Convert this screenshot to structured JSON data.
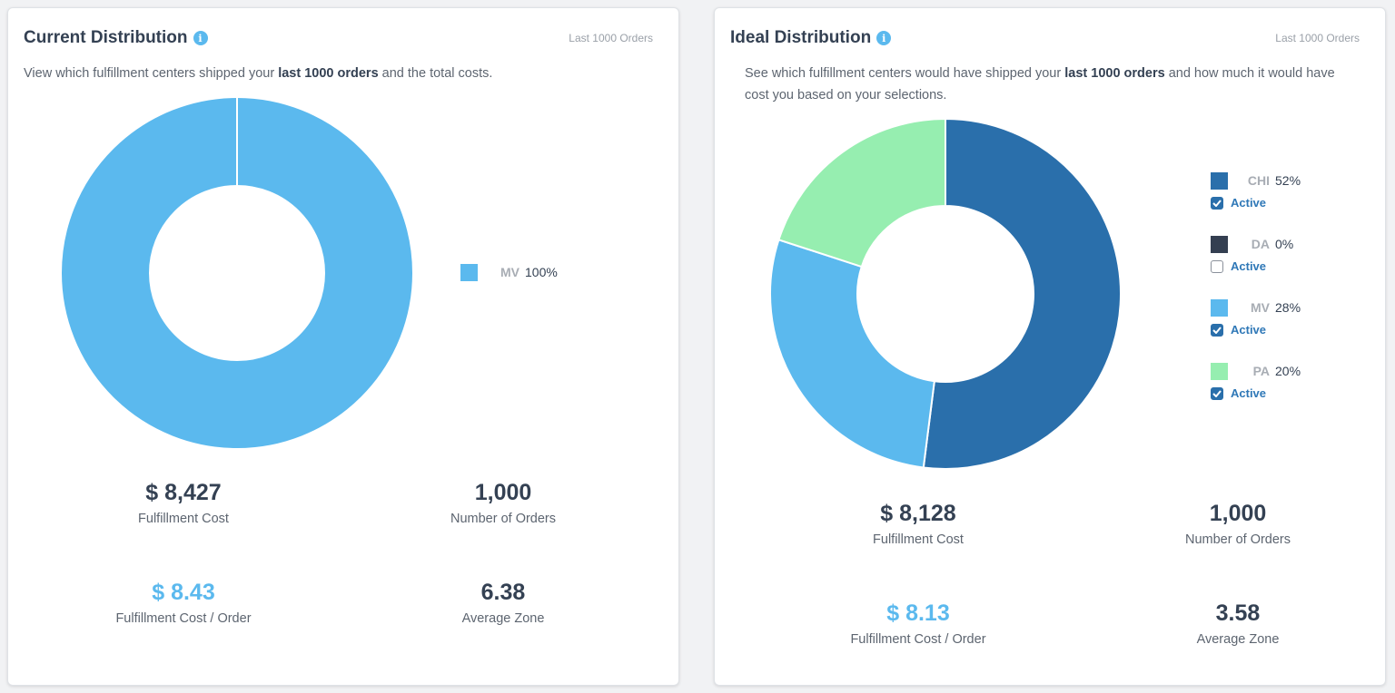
{
  "cards": [
    {
      "title": "Current Distribution",
      "badge": "Last 1000 Orders",
      "desc_pre": "View which fulfillment centers shipped your ",
      "desc_bold": "last 1000 orders",
      "desc_post": " and the total costs.",
      "stats": {
        "cost": "$ 8,427",
        "cost_label": "Fulfillment Cost",
        "orders": "1,000",
        "orders_label": "Number of Orders",
        "cpo": "$ 8.43",
        "cpo_label": "Fulfillment Cost / Order",
        "zone": "6.38",
        "zone_label": "Average Zone"
      }
    },
    {
      "title": "Ideal Distribution",
      "badge": "Last 1000 Orders",
      "desc_pre": "See which fulfillment centers would have shipped your ",
      "desc_bold": "last 1000 orders",
      "desc_post": " and how much it would have cost you based on your selections.",
      "stats": {
        "cost": "$ 8,128",
        "cost_label": "Fulfillment Cost",
        "orders": "1,000",
        "orders_label": "Number of Orders",
        "cpo": "$ 8.13",
        "cpo_label": "Fulfillment Cost / Order",
        "zone": "3.58",
        "zone_label": "Average Zone"
      },
      "active_label": "Active"
    }
  ],
  "chart_data": [
    {
      "type": "pie",
      "donut": true,
      "categories": [
        "MV"
      ],
      "values": [
        100
      ],
      "labels": [
        "100%"
      ],
      "colors": [
        "#5bb9ee"
      ],
      "legend": "right"
    },
    {
      "type": "pie",
      "donut": true,
      "categories": [
        "CHI",
        "DA",
        "MV",
        "PA"
      ],
      "values": [
        52,
        0,
        28,
        20
      ],
      "labels": [
        "52%",
        "0%",
        "28%",
        "20%"
      ],
      "colors": [
        "#2a6fab",
        "#343f51",
        "#5bb9ee",
        "#96eeb0"
      ],
      "active": [
        true,
        false,
        true,
        true
      ],
      "legend": "right"
    }
  ]
}
